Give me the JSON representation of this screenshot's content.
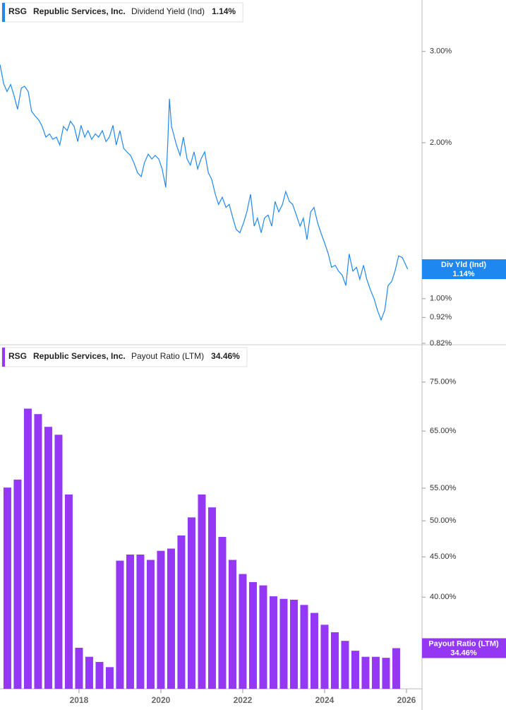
{
  "chart_data": [
    {
      "type": "line",
      "ticker": "RSG",
      "company": "Republic Services, Inc.",
      "callout": "Div Yld (Ind)",
      "log_scale": true,
      "grid": false,
      "legend": "upper left",
      "xlim": [
        2016.07,
        2026.38
      ],
      "ylim": [
        0.82,
        3.77
      ],
      "yticks": [
        {
          "value": 3,
          "label": "3.00%"
        },
        {
          "value": 2,
          "label": "2.00%"
        },
        {
          "value": 1,
          "label": "1.00%"
        },
        {
          "value": 0.92,
          "label": "0.92%"
        },
        {
          "value": 0.82,
          "label": "0.82%"
        }
      ],
      "x": [
        2016.07,
        2016.16,
        2016.24,
        2016.33,
        2016.41,
        2016.5,
        2016.59,
        2016.67,
        2016.76,
        2016.84,
        2016.93,
        2017.02,
        2017.1,
        2017.19,
        2017.28,
        2017.36,
        2017.45,
        2017.53,
        2017.62,
        2017.71,
        2017.79,
        2017.88,
        2017.97,
        2018.05,
        2018.14,
        2018.22,
        2018.31,
        2018.4,
        2018.48,
        2018.57,
        2018.66,
        2018.74,
        2018.83,
        2018.91,
        2019.0,
        2019.09,
        2019.17,
        2019.26,
        2019.34,
        2019.43,
        2019.52,
        2019.6,
        2019.69,
        2019.78,
        2019.86,
        2019.95,
        2020.03,
        2020.12,
        2020.17,
        2020.21,
        2020.26,
        2020.31,
        2020.38,
        2020.47,
        2020.55,
        2020.64,
        2020.72,
        2020.81,
        2020.9,
        2020.98,
        2021.07,
        2021.16,
        2021.24,
        2021.33,
        2021.41,
        2021.5,
        2021.59,
        2021.67,
        2021.76,
        2021.84,
        2021.93,
        2022.02,
        2022.1,
        2022.19,
        2022.28,
        2022.36,
        2022.45,
        2022.53,
        2022.62,
        2022.71,
        2022.79,
        2022.88,
        2022.97,
        2023.05,
        2023.14,
        2023.22,
        2023.31,
        2023.4,
        2023.48,
        2023.57,
        2023.66,
        2023.74,
        2023.83,
        2023.91,
        2024.0,
        2024.09,
        2024.17,
        2024.26,
        2024.34,
        2024.43,
        2024.52,
        2024.6,
        2024.69,
        2024.78,
        2024.86,
        2024.95,
        2025.03,
        2025.12,
        2025.21,
        2025.29,
        2025.38,
        2025.47,
        2025.55,
        2025.64,
        2025.72,
        2025.81,
        2025.9,
        2026.03
      ],
      "series": [
        {
          "name": "Dividend Yield (Ind)",
          "color": "#1e88f0",
          "values": [
            2.83,
            2.6,
            2.51,
            2.59,
            2.47,
            2.32,
            2.55,
            2.57,
            2.51,
            2.3,
            2.25,
            2.21,
            2.15,
            2.05,
            2.08,
            2.03,
            2.05,
            1.98,
            2.15,
            2.11,
            2.2,
            2.15,
            2.01,
            2.16,
            2.05,
            2.11,
            2.03,
            2.08,
            2.05,
            2.11,
            2.01,
            2.05,
            2.16,
            1.98,
            2.11,
            1.95,
            1.92,
            1.89,
            1.83,
            1.75,
            1.72,
            1.83,
            1.9,
            1.86,
            1.89,
            1.86,
            1.78,
            1.64,
            2.01,
            2.43,
            2.15,
            2.08,
            1.98,
            1.89,
            2.05,
            1.86,
            1.81,
            1.92,
            1.78,
            1.86,
            1.92,
            1.75,
            1.7,
            1.59,
            1.52,
            1.57,
            1.5,
            1.52,
            1.43,
            1.36,
            1.34,
            1.4,
            1.47,
            1.59,
            1.38,
            1.43,
            1.34,
            1.43,
            1.45,
            1.38,
            1.54,
            1.47,
            1.52,
            1.61,
            1.54,
            1.52,
            1.45,
            1.38,
            1.43,
            1.3,
            1.47,
            1.5,
            1.4,
            1.34,
            1.28,
            1.22,
            1.15,
            1.16,
            1.13,
            1.11,
            1.06,
            1.22,
            1.13,
            1.15,
            1.09,
            1.16,
            1.09,
            1.04,
            1.0,
            0.95,
            0.91,
            0.95,
            1.06,
            1.08,
            1.13,
            1.21,
            1.2,
            1.14
          ],
          "value_labels": [
            null,
            null,
            null,
            null,
            null,
            null,
            null,
            null,
            null,
            null,
            null,
            null,
            null,
            null,
            null,
            null,
            null,
            null,
            null,
            null,
            null,
            null,
            null,
            null,
            null,
            null,
            null,
            null,
            null,
            null,
            null,
            null,
            null,
            null,
            null,
            null,
            null,
            null,
            null,
            null,
            null,
            null,
            null,
            null,
            null,
            null,
            null,
            null,
            null,
            null,
            null,
            null,
            null,
            null,
            null,
            null,
            null,
            null,
            null,
            null,
            null,
            null,
            null,
            null,
            null,
            null,
            null,
            null,
            null,
            null,
            null,
            null,
            null,
            null,
            null,
            null,
            null,
            null,
            null,
            null,
            null,
            null,
            null,
            null,
            null,
            null,
            null,
            null,
            null,
            null,
            null,
            null,
            null,
            null,
            null,
            null,
            null,
            null,
            null,
            null,
            null,
            null,
            null,
            null,
            null,
            null,
            null,
            null,
            null,
            null,
            null,
            null,
            null,
            null,
            null,
            null,
            null,
            "1.14%"
          ]
        }
      ]
    },
    {
      "type": "bar",
      "ticker": "RSG",
      "company": "Republic Services, Inc.",
      "log_scale": true,
      "grid": false,
      "legend": "upper left",
      "xlim": [
        2016.07,
        2026.38
      ],
      "ylim": [
        30.6,
        83.3
      ],
      "xticks": [
        2018,
        2020,
        2022,
        2024,
        2026
      ],
      "yticks": [
        {
          "value": 75,
          "label": "75.00%"
        },
        {
          "value": 65,
          "label": "65.00%"
        },
        {
          "value": 55,
          "label": "55.00%"
        },
        {
          "value": 50,
          "label": "50.00%"
        },
        {
          "value": 45,
          "label": "45.00%"
        },
        {
          "value": 40,
          "label": "40.00%"
        }
      ],
      "x": [
        2016.25,
        2016.5,
        2016.75,
        2017,
        2017.25,
        2017.5,
        2017.75,
        2018,
        2018.25,
        2018.5,
        2018.75,
        2019,
        2019.25,
        2019.5,
        2019.75,
        2020,
        2020.25,
        2020.5,
        2020.75,
        2021,
        2021.25,
        2021.5,
        2021.75,
        2022,
        2022.25,
        2022.5,
        2022.75,
        2023,
        2023.25,
        2023.5,
        2023.75,
        2024,
        2024.25,
        2024.5,
        2024.75,
        2025,
        2025.25,
        2025.5,
        2025.75
      ],
      "series": [
        {
          "name": "Payout Ratio (LTM)",
          "color": "#9438f5",
          "values": [
            55.1,
            56.4,
            69.4,
            68.3,
            65.8,
            64.3,
            54.0,
            34.5,
            33.6,
            33.1,
            32.6,
            44.5,
            45.3,
            45.3,
            44.6,
            45.8,
            46.1,
            47.9,
            50.5,
            54.0,
            52.0,
            47.7,
            44.6,
            42.8,
            41.8,
            41.4,
            40.1,
            39.8,
            39.7,
            39.1,
            38.2,
            36.9,
            36.1,
            35.2,
            34.2,
            33.6,
            33.6,
            33.5,
            34.46
          ],
          "value_labels": [
            null,
            null,
            null,
            null,
            null,
            null,
            null,
            null,
            null,
            null,
            null,
            null,
            null,
            null,
            null,
            null,
            null,
            null,
            null,
            null,
            null,
            null,
            null,
            null,
            null,
            null,
            null,
            null,
            null,
            null,
            null,
            null,
            null,
            null,
            null,
            null,
            null,
            null,
            "34.46%"
          ]
        }
      ]
    }
  ]
}
